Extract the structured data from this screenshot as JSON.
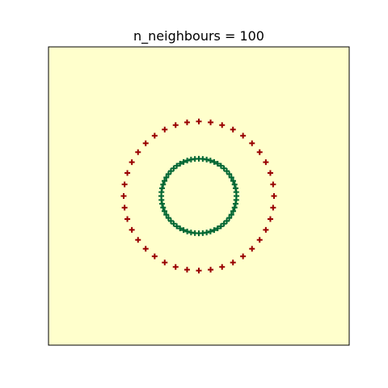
{
  "chart_data": {
    "type": "scatter",
    "title": "n_neighbours = 100",
    "xlabel": "",
    "ylabel": "",
    "xlim": [
      -1.1,
      1.1
    ],
    "ylim": [
      -1.1,
      1.1
    ],
    "grid": false,
    "ticks": false,
    "background_color": "#ffffcc",
    "marker": "plus",
    "series": [
      {
        "color": "#990000",
        "shape": "circle",
        "center": [
          0,
          0
        ],
        "radius": 0.55,
        "count": 40
      },
      {
        "color": "#006633",
        "shape": "circle",
        "center": [
          0,
          0
        ],
        "radius": 0.275,
        "count": 60
      }
    ]
  }
}
